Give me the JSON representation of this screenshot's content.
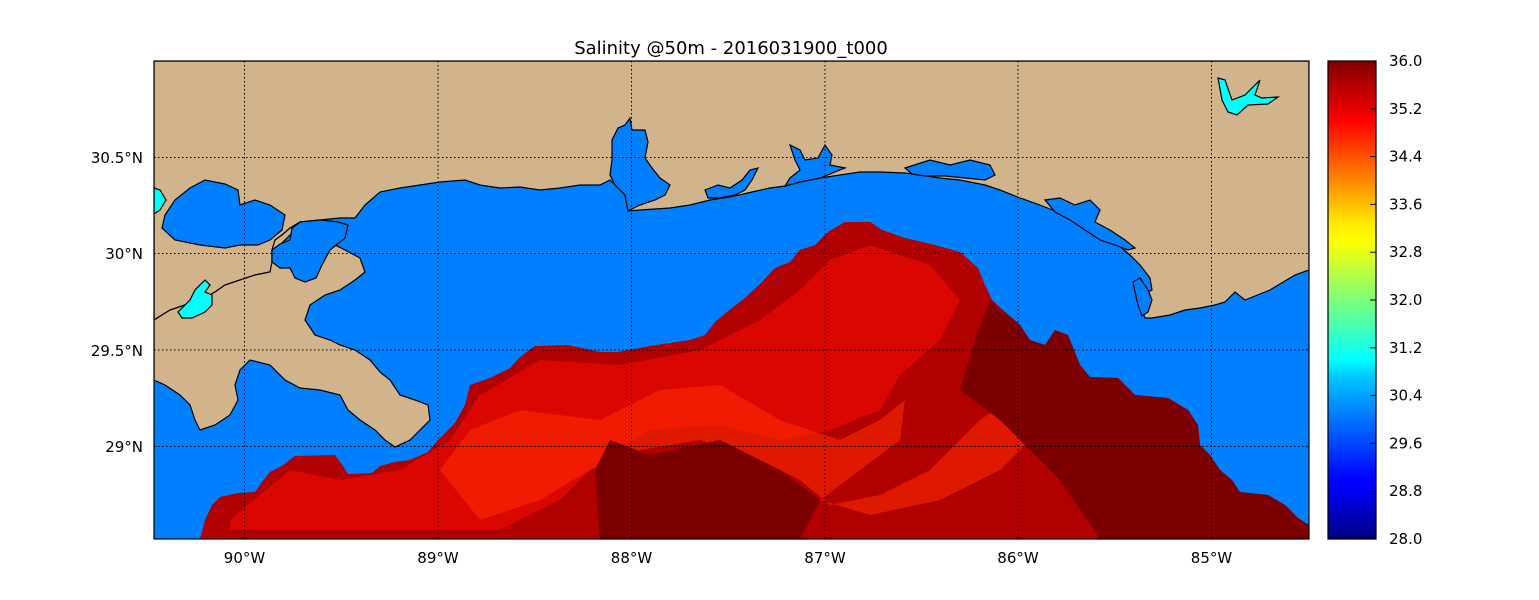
{
  "title": "Salinity @50m - 2016031900_t000",
  "map": {
    "lon_range": [
      -90.5,
      -84.5
    ],
    "lat_range": [
      28.5,
      31.0
    ],
    "colors": {
      "land": "#d2b48c",
      "ocean_masked": "#0080ff",
      "lake": "#00ffff",
      "salinity_high": "#800000",
      "salinity_mid": "#cc0000",
      "salinity_edge": "#ff2000"
    },
    "lon_ticks": [
      {
        "value": -90,
        "label": "90°W"
      },
      {
        "value": -89,
        "label": "89°W"
      },
      {
        "value": -88,
        "label": "88°W"
      },
      {
        "value": -87,
        "label": "87°W"
      },
      {
        "value": -86,
        "label": "86°W"
      },
      {
        "value": -85,
        "label": "85°W"
      }
    ],
    "lat_ticks": [
      {
        "value": 30.5,
        "label": "30.5°N"
      },
      {
        "value": 30.0,
        "label": "30°N"
      },
      {
        "value": 29.5,
        "label": "29.5°N"
      },
      {
        "value": 29.0,
        "label": "29°N"
      }
    ],
    "grid": true
  },
  "colorbar": {
    "colormap": "jet",
    "min": 28.0,
    "max": 36.0,
    "ticks": [
      "36.0",
      "35.2",
      "34.4",
      "33.6",
      "32.8",
      "32.0",
      "31.2",
      "30.4",
      "29.6",
      "28.8",
      "28.0"
    ]
  }
}
